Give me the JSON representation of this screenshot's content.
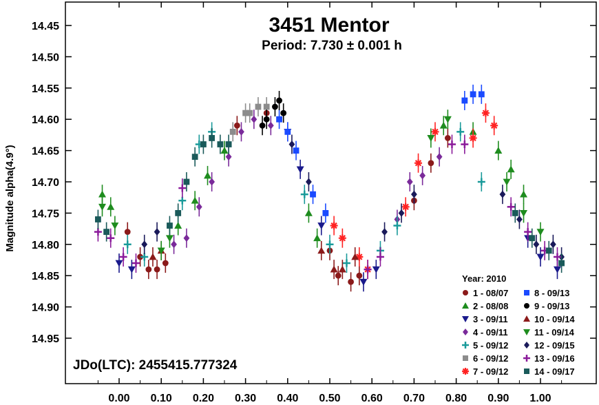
{
  "chart_data": {
    "type": "scatter",
    "title": "3451 Mentor",
    "subtitle": "Period: 7.730 ± 0.001 h",
    "ylabel": "Magnitude alpha(4.9°)",
    "xlabel": "",
    "annotation": "JDo(LTC): 2455415.777324",
    "xlim": [
      -0.06,
      1.08
    ],
    "ylim": [
      14.4,
      15.02
    ],
    "y_inverted": true,
    "x_ticks": [
      "0.00",
      "0.10",
      "0.20",
      "0.30",
      "0.40",
      "0.50",
      "0.60",
      "0.70",
      "0.80",
      "0.90",
      "1.00"
    ],
    "y_ticks": [
      "14.45",
      "14.50",
      "14.55",
      "14.60",
      "14.65",
      "14.70",
      "14.75",
      "14.80",
      "14.85",
      "14.90",
      "14.95"
    ],
    "legend_title": "Year: 2010",
    "legend_position": "bottom-right",
    "series": [
      {
        "name": "1 - 08/07",
        "color": "#8b1a1a",
        "marker": "circle",
        "points": [
          [
            0.02,
            14.78
          ],
          [
            0.05,
            14.82
          ],
          [
            0.07,
            14.84
          ],
          [
            0.09,
            14.84
          ],
          [
            0.11,
            14.83
          ],
          [
            0.28,
            14.61
          ],
          [
            0.35,
            14.59
          ],
          [
            0.5,
            14.81
          ],
          [
            0.52,
            14.85
          ],
          [
            0.55,
            14.86
          ],
          [
            0.57,
            14.85
          ],
          [
            0.7,
            14.73
          ],
          [
            0.74,
            14.67
          ],
          [
            0.78,
            14.63
          ]
        ]
      },
      {
        "name": "2 - 08/08",
        "color": "#1e8c1e",
        "marker": "triangle-up",
        "points": [
          [
            -0.04,
            14.72
          ],
          [
            -0.02,
            14.74
          ],
          [
            0.14,
            14.77
          ],
          [
            0.18,
            14.73
          ],
          [
            0.21,
            14.69
          ],
          [
            0.25,
            14.65
          ],
          [
            0.45,
            14.75
          ],
          [
            0.47,
            14.79
          ],
          [
            0.77,
            14.61
          ],
          [
            0.84,
            14.62
          ],
          [
            0.9,
            14.65
          ],
          [
            0.93,
            14.68
          ],
          [
            0.96,
            14.72
          ]
        ]
      },
      {
        "name": "3 - 09/11",
        "color": "#1a1a8c",
        "marker": "triangle-down",
        "points": [
          [
            0.0,
            14.83
          ],
          [
            0.03,
            14.84
          ],
          [
            0.4,
            14.62
          ],
          [
            0.43,
            14.68
          ],
          [
            0.48,
            14.77
          ],
          [
            0.58,
            14.86
          ],
          [
            0.61,
            14.84
          ],
          [
            0.97,
            14.79
          ],
          [
            1.0,
            14.82
          ],
          [
            1.04,
            14.84
          ]
        ]
      },
      {
        "name": "4 - 09/11",
        "color": "#7a2a9a",
        "marker": "diamond",
        "points": [
          [
            0.13,
            14.8
          ],
          [
            0.16,
            14.79
          ],
          [
            0.19,
            14.74
          ],
          [
            0.22,
            14.7
          ],
          [
            0.26,
            14.66
          ],
          [
            0.29,
            14.62
          ],
          [
            0.32,
            14.6
          ],
          [
            0.36,
            14.61
          ],
          [
            0.66,
            14.76
          ],
          [
            0.69,
            14.7
          ],
          [
            0.72,
            14.69
          ],
          [
            0.76,
            14.66
          ]
        ]
      },
      {
        "name": "5 - 09/12",
        "color": "#199a9a",
        "marker": "plus",
        "points": [
          [
            0.02,
            14.8
          ],
          [
            0.06,
            14.82
          ],
          [
            0.15,
            14.73
          ],
          [
            0.19,
            14.64
          ],
          [
            0.22,
            14.62
          ],
          [
            0.44,
            14.72
          ],
          [
            0.5,
            14.8
          ],
          [
            0.54,
            14.83
          ],
          [
            0.62,
            14.81
          ],
          [
            0.66,
            14.77
          ],
          [
            0.81,
            14.62
          ],
          [
            0.86,
            14.7
          ]
        ]
      },
      {
        "name": "6 - 09/12",
        "color": "#8c8c8c",
        "marker": "square",
        "points": [
          [
            0.27,
            14.62
          ],
          [
            0.3,
            14.59
          ],
          [
            0.31,
            14.59
          ],
          [
            0.33,
            14.58
          ],
          [
            0.35,
            14.58
          ]
        ]
      },
      {
        "name": "7 - 09/12",
        "color": "#ff2222",
        "marker": "asterisk",
        "points": [
          [
            0.51,
            14.77
          ],
          [
            0.53,
            14.79
          ],
          [
            0.57,
            14.82
          ],
          [
            0.59,
            14.84
          ],
          [
            0.68,
            14.74
          ],
          [
            0.71,
            14.67
          ],
          [
            0.75,
            14.62
          ],
          [
            0.84,
            14.63
          ],
          [
            0.87,
            14.59
          ],
          [
            0.89,
            14.61
          ]
        ]
      },
      {
        "name": "8 - 09/13",
        "color": "#1a4aff",
        "marker": "square",
        "points": [
          [
            0.38,
            14.6
          ],
          [
            0.4,
            14.62
          ],
          [
            0.42,
            14.65
          ],
          [
            0.46,
            14.72
          ],
          [
            0.49,
            14.75
          ],
          [
            0.82,
            14.57
          ],
          [
            0.84,
            14.56
          ],
          [
            0.86,
            14.56
          ]
        ]
      },
      {
        "name": "9 - 09/13",
        "color": "#000000",
        "marker": "circle",
        "points": [
          [
            0.34,
            14.61
          ],
          [
            0.35,
            14.6
          ],
          [
            0.37,
            14.58
          ],
          [
            0.38,
            14.57
          ],
          [
            0.39,
            14.59
          ]
        ]
      },
      {
        "name": "10 - 09/14",
        "color": "#8b1a1a",
        "marker": "triangle-up",
        "points": [
          [
            0.08,
            14.82
          ],
          [
            0.1,
            14.81
          ],
          [
            0.48,
            14.81
          ],
          [
            0.51,
            14.84
          ],
          [
            0.53,
            14.84
          ],
          [
            0.56,
            14.82
          ]
        ]
      },
      {
        "name": "11 - 09/14",
        "color": "#1e8c1e",
        "marker": "triangle-down",
        "points": [
          [
            -0.04,
            14.74
          ],
          [
            -0.01,
            14.77
          ],
          [
            0.1,
            14.81
          ],
          [
            0.12,
            14.79
          ],
          [
            0.74,
            14.63
          ],
          [
            0.78,
            14.6
          ],
          [
            0.92,
            14.7
          ],
          [
            0.96,
            14.75
          ],
          [
            1.0,
            14.78
          ]
        ]
      },
      {
        "name": "12 - 09/15",
        "color": "#1a1a5a",
        "marker": "diamond",
        "points": [
          [
            0.06,
            14.8
          ],
          [
            0.09,
            14.78
          ],
          [
            0.41,
            14.64
          ],
          [
            0.45,
            14.7
          ],
          [
            0.63,
            14.78
          ],
          [
            0.67,
            14.75
          ],
          [
            0.7,
            14.72
          ],
          [
            0.91,
            14.72
          ],
          [
            0.95,
            14.76
          ],
          [
            0.99,
            14.8
          ],
          [
            1.03,
            14.8
          ],
          [
            1.05,
            14.82
          ]
        ]
      },
      {
        "name": "13 - 09/16",
        "color": "#8a1a9a",
        "marker": "plus",
        "points": [
          [
            -0.05,
            14.78
          ],
          [
            -0.02,
            14.79
          ],
          [
            0.01,
            14.82
          ],
          [
            0.04,
            14.83
          ],
          [
            0.15,
            14.71
          ],
          [
            0.59,
            14.84
          ],
          [
            0.62,
            14.82
          ],
          [
            0.79,
            14.64
          ],
          [
            0.82,
            14.64
          ],
          [
            0.93,
            14.74
          ],
          [
            0.97,
            14.78
          ],
          [
            1.01,
            14.81
          ],
          [
            1.04,
            14.82
          ]
        ]
      },
      {
        "name": "14 - 09/17",
        "color": "#1a5a5a",
        "marker": "square",
        "points": [
          [
            -0.05,
            14.76
          ],
          [
            -0.03,
            14.78
          ],
          [
            0.12,
            14.77
          ],
          [
            0.14,
            14.75
          ],
          [
            0.16,
            14.7
          ],
          [
            0.18,
            14.66
          ],
          [
            0.2,
            14.64
          ],
          [
            0.22,
            14.63
          ],
          [
            0.24,
            14.64
          ],
          [
            0.26,
            14.64
          ],
          [
            0.94,
            14.75
          ],
          [
            0.98,
            14.79
          ],
          [
            1.02,
            14.81
          ],
          [
            1.05,
            14.83
          ]
        ]
      }
    ]
  }
}
